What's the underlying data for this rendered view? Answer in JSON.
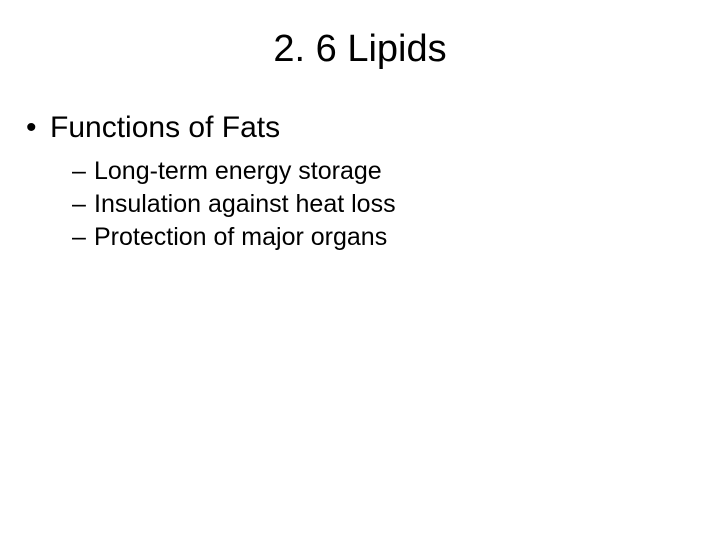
{
  "slide": {
    "title": "2. 6  Lipids",
    "background_color": "#ffffff",
    "text_color": "#000000",
    "title_fontsize": 38,
    "level1_fontsize": 30,
    "level2_fontsize": 25,
    "bullets": {
      "level1": {
        "text": "Functions of Fats",
        "marker": "•"
      },
      "level2": [
        {
          "text": "Long-term energy storage",
          "marker": "–"
        },
        {
          "text": "Insulation against heat loss",
          "marker": "–"
        },
        {
          "text": "Protection of major organs",
          "marker": "–"
        }
      ]
    }
  }
}
